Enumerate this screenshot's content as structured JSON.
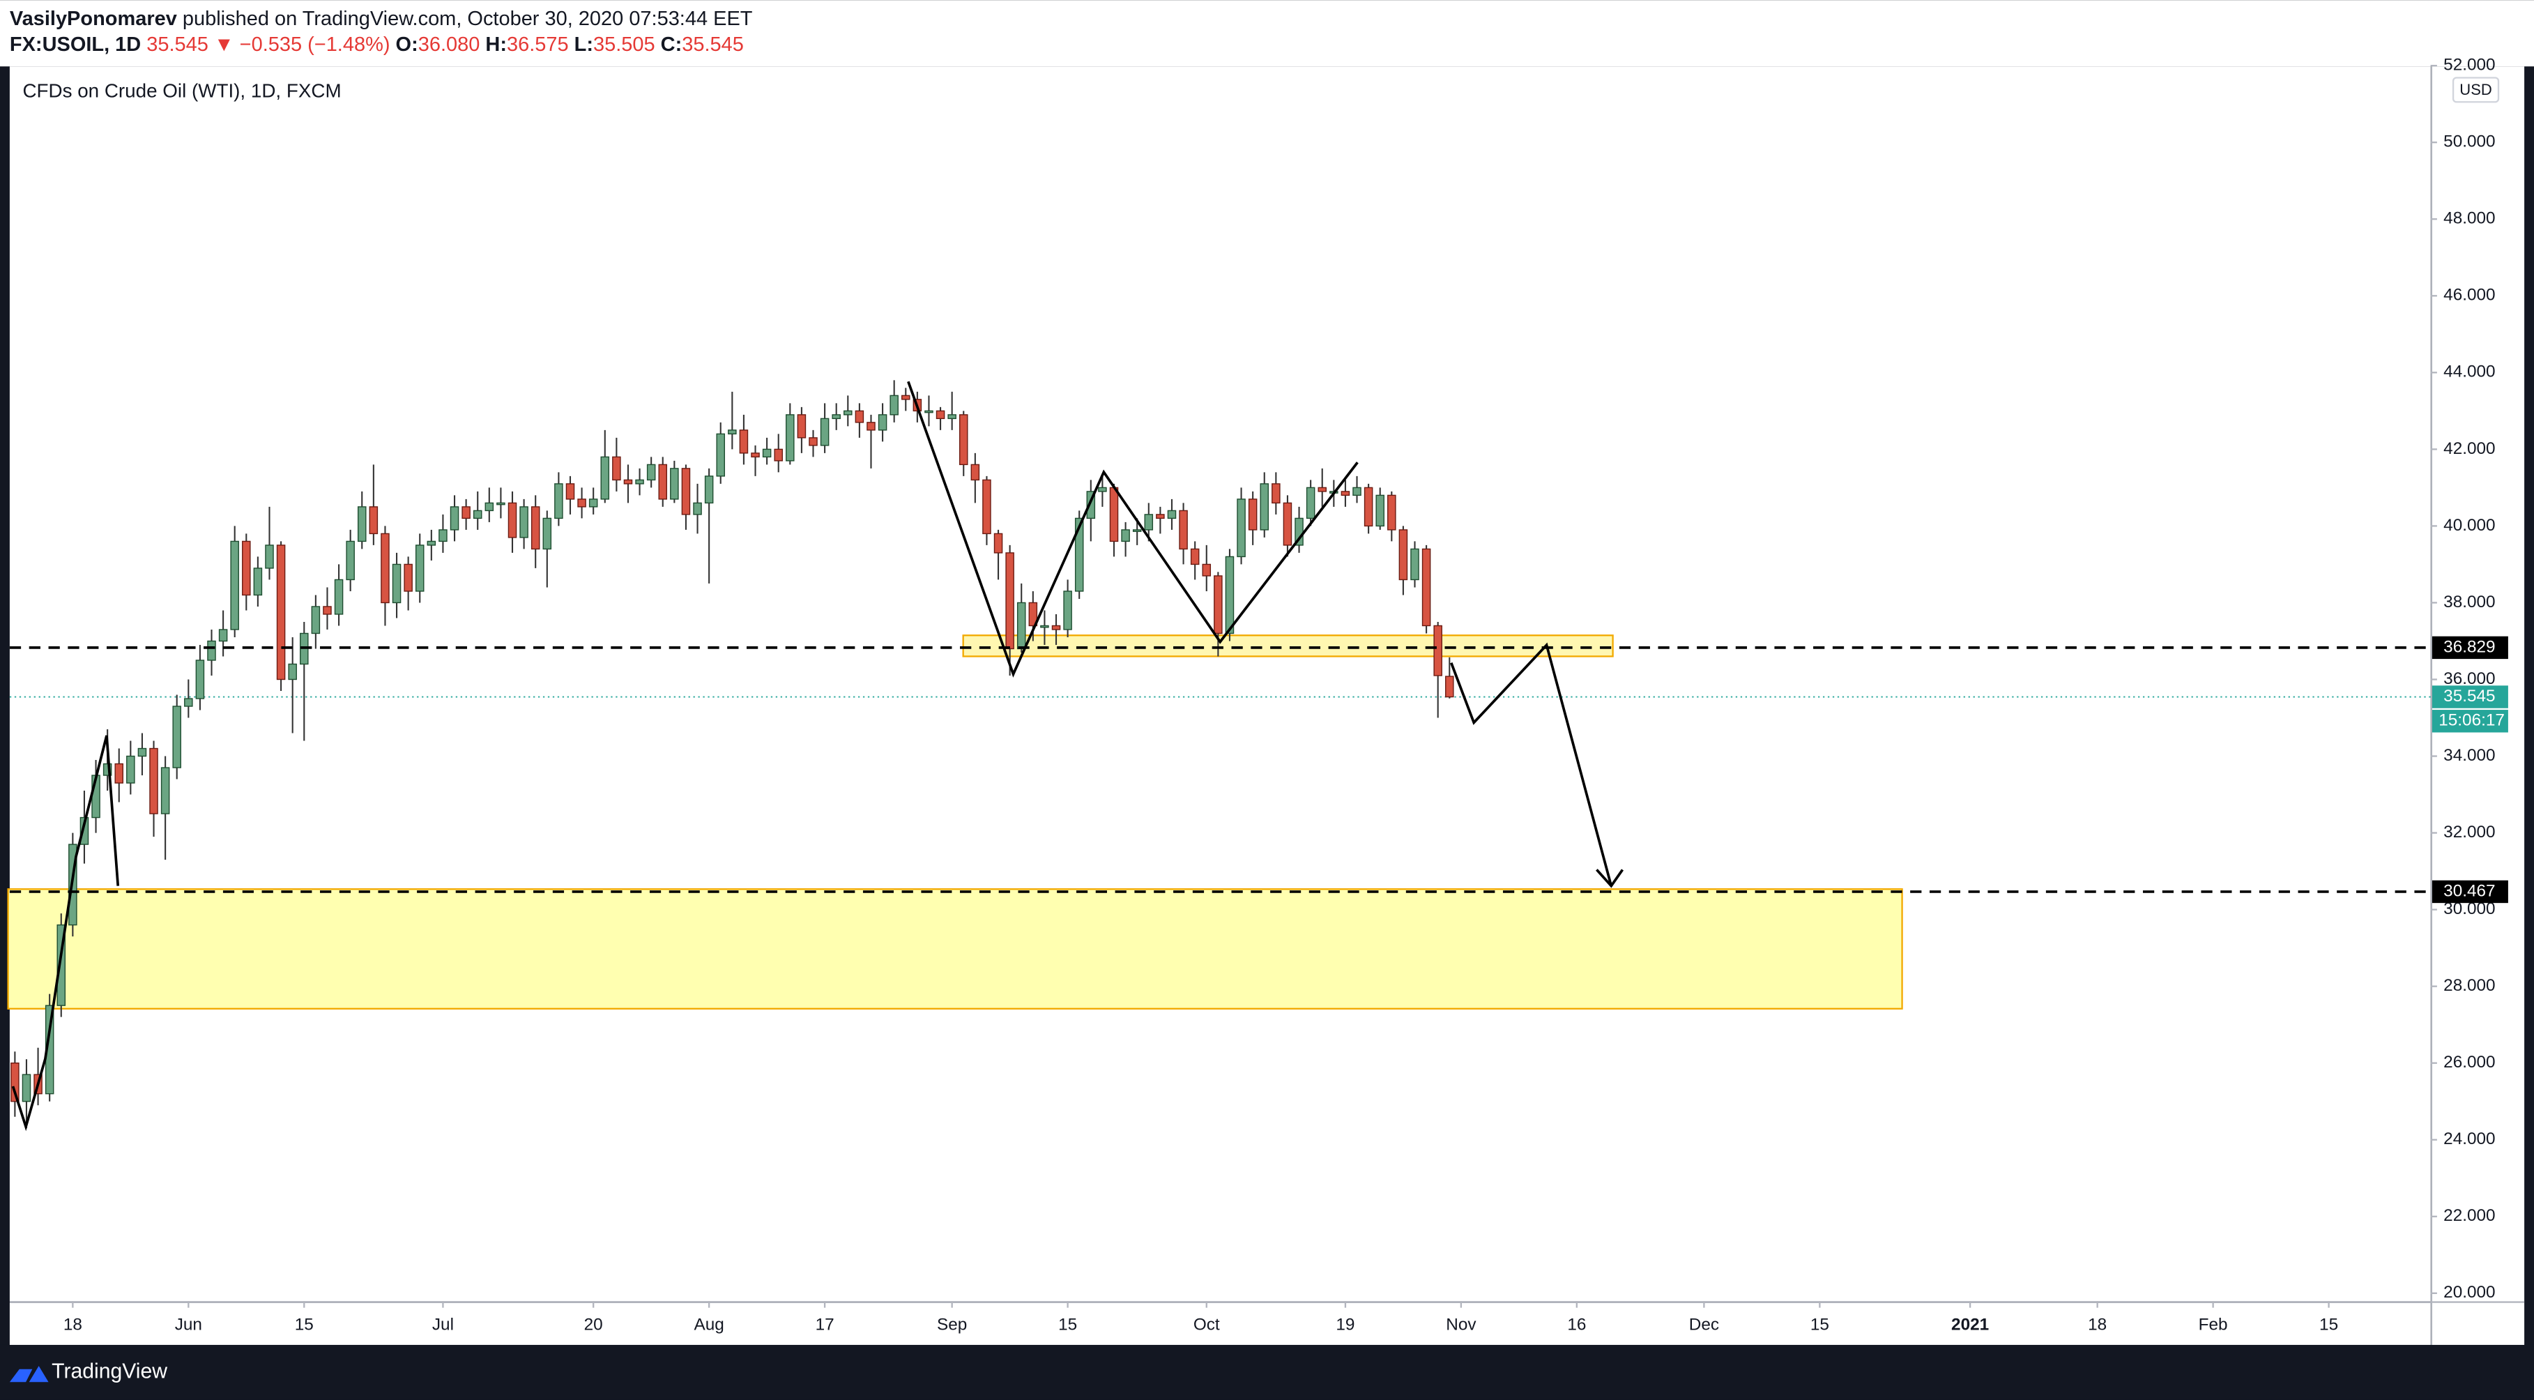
{
  "header": {
    "author": "VasilyPonomarev",
    "published": "published on TradingView.com, October 30, 2020 07:53:44 EET",
    "symbol": "FX:USOIL, 1D",
    "last": "35.545",
    "change": "▼ −0.535 (−1.48%)",
    "ohlc": [
      {
        "label": "O:",
        "value": "36.080"
      },
      {
        "label": "H:",
        "value": "36.575"
      },
      {
        "label": "L:",
        "value": "35.505"
      },
      {
        "label": "C:",
        "value": "35.545"
      }
    ]
  },
  "chart_data": {
    "type": "candlestick",
    "title": "CFDs on Crude Oil (WTI), 1D, FXCM",
    "currency": "USD",
    "up_color": "#6ba583",
    "down_color": "#d75442",
    "open": [
      26.0,
      25.0,
      25.7,
      25.2,
      27.5,
      29.6,
      31.7,
      32.4,
      33.5,
      33.8,
      33.3,
      34.0,
      34.2,
      32.5,
      33.7,
      35.3,
      35.5,
      36.5,
      37.0,
      37.3,
      39.6,
      38.2,
      38.9,
      39.5,
      36.0,
      36.4,
      37.2,
      37.9,
      37.7,
      38.6,
      39.6,
      40.5,
      39.8,
      38.0,
      39.0,
      38.3,
      39.5,
      39.6,
      39.9,
      40.5,
      40.2,
      40.4,
      40.6,
      40.6,
      39.7,
      40.5,
      39.4,
      40.2,
      41.1,
      40.7,
      40.5,
      40.7,
      41.8,
      41.2,
      41.1,
      41.2,
      41.6,
      40.7,
      41.5,
      40.3,
      40.6,
      41.3,
      42.4,
      42.5,
      41.9,
      41.8,
      42.0,
      41.7,
      42.9,
      42.3,
      42.1,
      42.8,
      42.9,
      43.0,
      42.7,
      42.5,
      42.9,
      43.4,
      43.3,
      43.0,
      43.0,
      42.8,
      42.9,
      41.6,
      41.2,
      39.8,
      39.3,
      36.8,
      38.0,
      37.4,
      37.4,
      37.3,
      38.3,
      40.2,
      40.9,
      41.0,
      39.6,
      39.9,
      39.9,
      40.3,
      40.2,
      40.4,
      39.4,
      39.0,
      38.7,
      37.2,
      39.2,
      40.7,
      39.9,
      41.1,
      40.6,
      39.5,
      40.2,
      41.0,
      40.9,
      40.9,
      40.8,
      41.0,
      40.0,
      40.8,
      39.9,
      38.6,
      39.4,
      37.4,
      36.08
    ],
    "high": [
      26.3,
      26.1,
      26.4,
      27.8,
      29.9,
      32.0,
      33.1,
      33.9,
      34.7,
      34.2,
      34.4,
      34.6,
      34.4,
      34.0,
      35.6,
      36.0,
      36.9,
      37.3,
      37.8,
      40.0,
      39.8,
      39.2,
      40.5,
      39.6,
      37.1,
      37.5,
      38.2,
      38.4,
      39.0,
      39.9,
      40.9,
      41.6,
      40.0,
      39.3,
      39.2,
      39.8,
      39.9,
      40.3,
      40.8,
      40.7,
      40.9,
      41.0,
      41.0,
      40.9,
      40.7,
      40.8,
      40.4,
      41.4,
      41.3,
      41.0,
      41.0,
      42.5,
      42.3,
      41.6,
      41.5,
      41.8,
      41.8,
      41.7,
      41.6,
      41.1,
      41.5,
      42.7,
      43.5,
      42.9,
      42.1,
      42.3,
      42.4,
      43.2,
      43.1,
      42.5,
      43.2,
      43.2,
      43.4,
      43.2,
      42.9,
      43.2,
      43.8,
      43.6,
      43.5,
      43.4,
      43.1,
      43.5,
      43.0,
      41.9,
      41.3,
      39.9,
      39.5,
      38.5,
      38.3,
      37.8,
      37.7,
      38.6,
      40.4,
      41.2,
      41.3,
      41.1,
      40.1,
      40.2,
      40.6,
      40.5,
      40.7,
      40.6,
      39.6,
      39.5,
      38.8,
      39.4,
      41.0,
      40.9,
      41.4,
      41.4,
      40.8,
      40.5,
      41.2,
      41.5,
      41.2,
      41.2,
      41.3,
      41.1,
      41.0,
      40.9,
      40.0,
      39.6,
      39.5,
      37.5,
      36.575
    ],
    "low": [
      24.6,
      24.3,
      24.9,
      25.0,
      27.2,
      29.3,
      31.2,
      32.0,
      33.1,
      32.8,
      33.0,
      33.5,
      31.9,
      31.3,
      33.4,
      35.0,
      35.2,
      36.1,
      36.6,
      37.1,
      37.8,
      37.9,
      38.6,
      35.7,
      34.6,
      34.4,
      36.8,
      37.3,
      37.4,
      38.3,
      39.4,
      39.5,
      37.4,
      37.6,
      37.8,
      38.0,
      39.1,
      39.3,
      39.6,
      39.9,
      39.9,
      40.1,
      40.2,
      39.3,
      39.4,
      38.9,
      38.4,
      40.0,
      40.3,
      40.2,
      40.3,
      40.6,
      40.9,
      40.6,
      40.8,
      41.0,
      40.5,
      40.6,
      39.9,
      39.8,
      38.5,
      41.1,
      42.0,
      41.6,
      41.3,
      41.6,
      41.4,
      41.6,
      41.9,
      41.8,
      41.9,
      42.5,
      42.6,
      42.3,
      41.5,
      42.2,
      42.7,
      43.0,
      42.7,
      42.6,
      42.5,
      42.5,
      41.3,
      40.6,
      39.5,
      38.6,
      36.1,
      36.7,
      37.0,
      36.9,
      36.9,
      37.1,
      38.1,
      39.6,
      40.5,
      39.2,
      39.2,
      39.5,
      39.6,
      39.8,
      39.9,
      39.0,
      38.6,
      38.3,
      36.6,
      37.0,
      39.0,
      39.5,
      39.7,
      40.3,
      39.2,
      39.3,
      40.0,
      40.5,
      40.5,
      40.5,
      40.6,
      39.8,
      39.9,
      39.6,
      38.2,
      38.4,
      37.2,
      35.0,
      35.505
    ],
    "close": [
      25.0,
      25.7,
      25.2,
      27.5,
      29.6,
      31.7,
      32.4,
      33.5,
      33.8,
      33.3,
      34.0,
      34.2,
      32.5,
      33.7,
      35.3,
      35.5,
      36.5,
      37.0,
      37.3,
      39.6,
      38.2,
      38.9,
      39.5,
      36.0,
      36.4,
      37.2,
      37.9,
      37.7,
      38.6,
      39.6,
      40.5,
      39.8,
      38.0,
      39.0,
      38.3,
      39.5,
      39.6,
      39.9,
      40.5,
      40.2,
      40.4,
      40.6,
      40.6,
      39.7,
      40.5,
      39.4,
      40.2,
      41.1,
      40.7,
      40.5,
      40.7,
      41.8,
      41.2,
      41.1,
      41.2,
      41.6,
      40.7,
      41.5,
      40.3,
      40.6,
      41.3,
      42.4,
      42.5,
      41.9,
      41.8,
      42.0,
      41.7,
      42.9,
      42.3,
      42.1,
      42.8,
      42.9,
      43.0,
      42.7,
      42.5,
      42.9,
      43.4,
      43.3,
      43.0,
      43.0,
      42.8,
      42.9,
      41.6,
      41.2,
      39.8,
      39.3,
      36.8,
      38.0,
      37.4,
      37.4,
      37.3,
      38.3,
      40.2,
      40.9,
      41.0,
      39.6,
      39.9,
      39.9,
      40.3,
      40.2,
      40.4,
      39.4,
      39.0,
      38.7,
      37.2,
      39.2,
      40.7,
      39.9,
      41.1,
      40.6,
      39.5,
      40.2,
      41.0,
      40.9,
      40.9,
      40.8,
      41.0,
      40.0,
      40.8,
      39.9,
      38.6,
      39.4,
      37.4,
      36.1,
      35.545
    ],
    "xlim": [
      -0.45,
      208.8
    ],
    "xticks": [
      {
        "value": 5,
        "label": "18"
      },
      {
        "value": 15,
        "label": "Jun"
      },
      {
        "value": 25,
        "label": "15"
      },
      {
        "value": 37,
        "label": "Jul"
      },
      {
        "value": 50,
        "label": "20"
      },
      {
        "value": 60,
        "label": "Aug"
      },
      {
        "value": 70,
        "label": "17"
      },
      {
        "value": 81,
        "label": "Sep"
      },
      {
        "value": 91,
        "label": "15"
      },
      {
        "value": 103,
        "label": "Oct"
      },
      {
        "value": 115,
        "label": "19"
      },
      {
        "value": 125,
        "label": "Nov"
      },
      {
        "value": 135,
        "label": "16"
      },
      {
        "value": 146,
        "label": "Dec"
      },
      {
        "value": 156,
        "label": "15"
      },
      {
        "value": 169,
        "label": "2021"
      },
      {
        "value": 180,
        "label": "18"
      },
      {
        "value": 190,
        "label": "Feb"
      },
      {
        "value": 200,
        "label": "15"
      }
    ],
    "ylim": [
      19.79,
      51.98
    ],
    "yticks": [
      {
        "value": 20,
        "label": "20.000"
      },
      {
        "value": 22,
        "label": "22.000"
      },
      {
        "value": 24,
        "label": "24.000"
      },
      {
        "value": 26,
        "label": "26.000"
      },
      {
        "value": 28,
        "label": "28.000"
      },
      {
        "value": 30,
        "label": "30.000"
      },
      {
        "value": 32,
        "label": "32.000"
      },
      {
        "value": 34,
        "label": "34.000"
      },
      {
        "value": 36,
        "label": "36.000"
      },
      {
        "value": 38,
        "label": "38.000"
      },
      {
        "value": 40,
        "label": "40.000"
      },
      {
        "value": 42,
        "label": "42.000"
      },
      {
        "value": 44,
        "label": "44.000"
      },
      {
        "value": 46,
        "label": "46.000"
      },
      {
        "value": 48,
        "label": "48.000"
      },
      {
        "value": 50,
        "label": "50.000"
      },
      {
        "value": 52,
        "label": "52.000"
      }
    ],
    "levels": [
      36.829,
      30.467
    ],
    "last_price": 35.545,
    "countdown": "15:06:17",
    "last_color": "#26a69a"
  },
  "footer": {
    "brand": "TradingView"
  }
}
